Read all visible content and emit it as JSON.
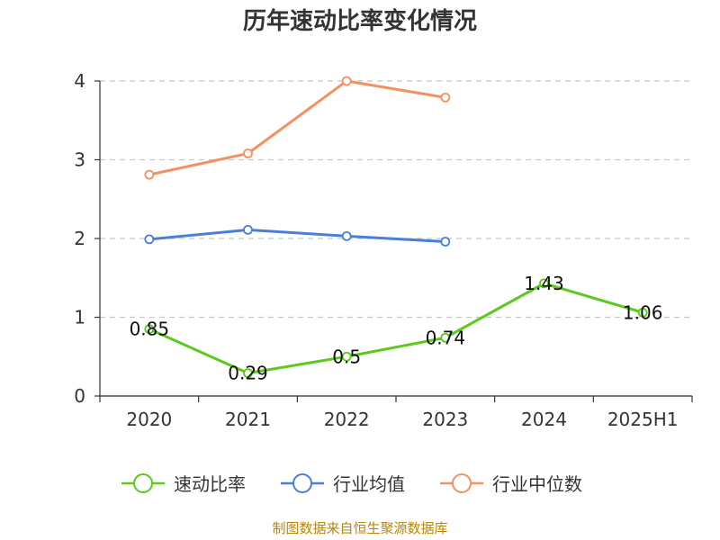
{
  "chart_data": {
    "type": "line",
    "title": "历年速动比率变化情况",
    "categories": [
      "2020",
      "2021",
      "2022",
      "2023",
      "2024",
      "2025H1"
    ],
    "ylim": [
      0,
      4
    ],
    "yticks": [
      0,
      1,
      2,
      3,
      4
    ],
    "grid": true,
    "legend_position": "bottom",
    "series": [
      {
        "name": "速动比率",
        "color": "#5cc91e",
        "values": [
          0.85,
          0.29,
          0.5,
          0.74,
          1.43,
          1.06
        ],
        "labels": [
          "0.85",
          "0.29",
          "0.5",
          "0.74",
          "1.43",
          "1.06"
        ],
        "show_labels": true
      },
      {
        "name": "行业均值",
        "color": "#4a7fd8",
        "values": [
          1.99,
          2.11,
          2.03,
          1.96,
          null,
          null
        ],
        "show_labels": false
      },
      {
        "name": "行业中位数",
        "color": "#f59060",
        "values": [
          2.81,
          3.08,
          4.0,
          3.79,
          null,
          null
        ],
        "show_labels": false
      }
    ]
  },
  "source": "制图数据来自恒生聚源数据库"
}
